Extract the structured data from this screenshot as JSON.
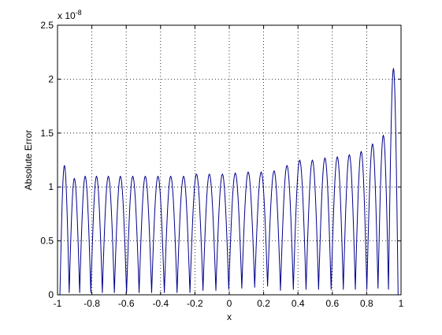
{
  "chart_data": {
    "type": "line",
    "title": "",
    "xlabel": "x",
    "ylabel": "Absolute Error",
    "y_exponent_label": "x 10",
    "y_exponent_power": "-8",
    "xlim": [
      -1,
      1
    ],
    "ylim": [
      0,
      2.5
    ],
    "grid": true,
    "x_ticks": [
      -1,
      -0.8,
      -0.6,
      -0.4,
      -0.2,
      0,
      0.2,
      0.4,
      0.6,
      0.8,
      1
    ],
    "x_tick_labels": [
      "-1",
      "-0.8",
      "-0.6",
      "-0.4",
      "-0.2",
      "0",
      "0.2",
      "0.4",
      "0.6",
      "0.8",
      "1"
    ],
    "y_ticks": [
      0,
      0.5,
      1,
      1.5,
      2,
      2.5
    ],
    "y_tick_labels": [
      "0",
      "0.5",
      "1",
      "1.5",
      "2",
      "2.5"
    ],
    "line_color": "#00008B",
    "series": [
      {
        "x": [
          -0.986,
          -0.96,
          -0.932,
          -0.902,
          -0.871,
          -0.839,
          -0.806,
          -0.773,
          -0.739,
          -0.704,
          -0.669,
          -0.634,
          -0.598,
          -0.562,
          -0.525,
          -0.489,
          -0.452,
          -0.415,
          -0.378,
          -0.341,
          -0.304,
          -0.266,
          -0.229,
          -0.191,
          -0.153,
          -0.116,
          -0.078,
          -0.04,
          -0.003,
          0.035,
          0.073,
          0.11,
          0.148,
          0.186,
          0.223,
          0.261,
          0.298,
          0.336,
          0.373,
          0.41,
          0.447,
          0.484,
          0.52,
          0.557,
          0.593,
          0.629,
          0.664,
          0.699,
          0.734,
          0.768,
          0.801,
          0.834,
          0.866,
          0.897,
          0.927,
          0.956,
          0.983
        ],
        "y": [
          0.0,
          1.2,
          0.02,
          1.08,
          0.02,
          1.1,
          0.02,
          1.1,
          0.02,
          1.1,
          0.02,
          1.1,
          0.02,
          1.1,
          0.02,
          1.1,
          0.02,
          1.1,
          0.02,
          1.1,
          0.02,
          1.1,
          0.02,
          1.12,
          0.04,
          1.12,
          0.04,
          1.12,
          0.05,
          1.13,
          0.06,
          1.14,
          0.07,
          1.14,
          0.08,
          1.15,
          0.04,
          1.2,
          0.05,
          1.25,
          0.05,
          1.25,
          0.05,
          1.27,
          0.05,
          1.28,
          0.05,
          1.3,
          0.05,
          1.33,
          0.05,
          1.4,
          0.06,
          1.48,
          0.05,
          2.1,
          0.0
        ]
      }
    ]
  }
}
